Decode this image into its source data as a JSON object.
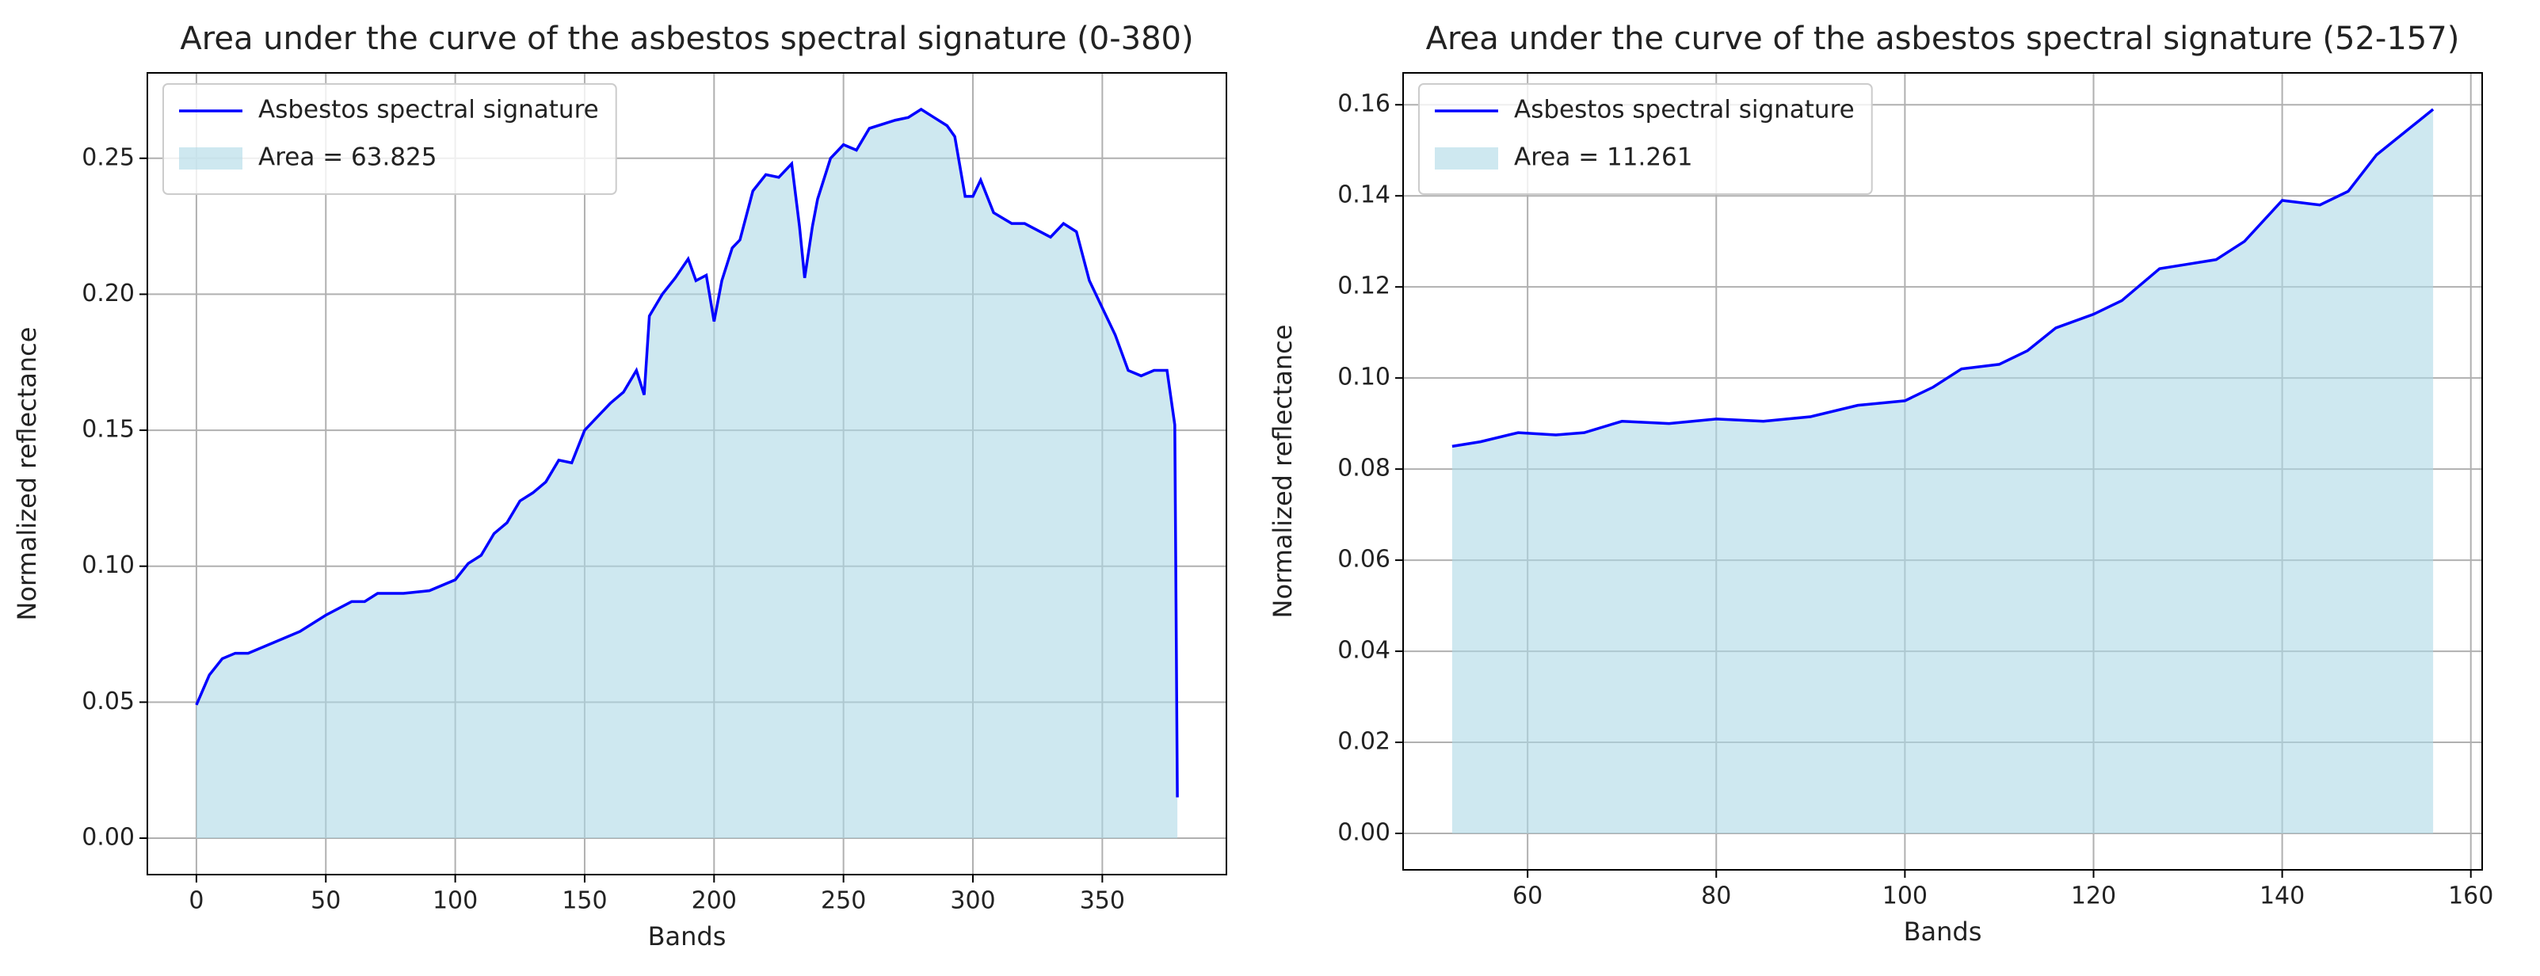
{
  "chart_data": [
    {
      "type": "line",
      "title": "Area under the curve of the asbestos spectral signature (0-380)",
      "xlabel": "Bands",
      "ylabel": "Normalized reflectance",
      "xlim": [
        -18.95,
        397.95
      ],
      "ylim": [
        -0.0134,
        0.2814
      ],
      "xticks": [
        0,
        50,
        100,
        150,
        200,
        250,
        300,
        350
      ],
      "yticks": [
        {
          "value": 0,
          "label": "0.00"
        },
        {
          "value": 0.05,
          "label": "0.05"
        },
        {
          "value": 0.1,
          "label": "0.10"
        },
        {
          "value": 0.15,
          "label": "0.15"
        },
        {
          "value": 0.2,
          "label": "0.20"
        },
        {
          "value": 0.25,
          "label": "0.25"
        }
      ],
      "grid": true,
      "legend": "upper left",
      "series": [
        {
          "name": "Asbestos spectral signature",
          "color": "#0000ff",
          "x": [
            0,
            5,
            10,
            15,
            20,
            30,
            40,
            50,
            60,
            65,
            70,
            80,
            90,
            100,
            105,
            110,
            115,
            120,
            125,
            130,
            135,
            140,
            145,
            150,
            160,
            165,
            170,
            173,
            175,
            180,
            185,
            190,
            193,
            197,
            200,
            203,
            207,
            210,
            215,
            220,
            225,
            230,
            233,
            235,
            238,
            240,
            245,
            250,
            255,
            260,
            270,
            275,
            280,
            285,
            290,
            293,
            297,
            300,
            303,
            308,
            315,
            320,
            330,
            335,
            340,
            345,
            350,
            355,
            360,
            365,
            370,
            375,
            378,
            379
          ],
          "values": [
            0.049,
            0.06,
            0.066,
            0.068,
            0.068,
            0.072,
            0.076,
            0.082,
            0.087,
            0.087,
            0.09,
            0.09,
            0.091,
            0.095,
            0.101,
            0.104,
            0.112,
            0.116,
            0.124,
            0.127,
            0.131,
            0.139,
            0.138,
            0.15,
            0.16,
            0.164,
            0.172,
            0.163,
            0.192,
            0.2,
            0.206,
            0.213,
            0.205,
            0.207,
            0.19,
            0.205,
            0.217,
            0.22,
            0.238,
            0.244,
            0.243,
            0.248,
            0.225,
            0.206,
            0.225,
            0.235,
            0.25,
            0.255,
            0.253,
            0.261,
            0.264,
            0.265,
            0.268,
            0.265,
            0.262,
            0.258,
            0.236,
            0.236,
            0.242,
            0.23,
            0.226,
            0.226,
            0.221,
            0.226,
            0.223,
            0.205,
            0.195,
            0.185,
            0.172,
            0.17,
            0.172,
            0.172,
            0.152,
            0.015
          ]
        }
      ],
      "area": {
        "label": "Area = 63.825",
        "color": "#add8e6"
      }
    },
    {
      "type": "line",
      "title": "Area under the curve of the asbestos spectral signature (52-157)",
      "xlabel": "Bands",
      "ylabel": "Normalized reflectance",
      "xlim": [
        46.8,
        161.2
      ],
      "ylim": [
        -0.008,
        0.167
      ],
      "xticks": [
        60,
        80,
        100,
        120,
        140,
        160
      ],
      "yticks": [
        {
          "value": 0,
          "label": "0.00"
        },
        {
          "value": 0.02,
          "label": "0.02"
        },
        {
          "value": 0.04,
          "label": "0.04"
        },
        {
          "value": 0.06,
          "label": "0.06"
        },
        {
          "value": 0.08,
          "label": "0.08"
        },
        {
          "value": 0.1,
          "label": "0.10"
        },
        {
          "value": 0.12,
          "label": "0.12"
        },
        {
          "value": 0.14,
          "label": "0.14"
        },
        {
          "value": 0.16,
          "label": "0.16"
        }
      ],
      "grid": true,
      "legend": "upper left",
      "series": [
        {
          "name": "Asbestos spectral signature",
          "color": "#0000ff",
          "x": [
            52,
            55,
            59,
            63,
            66,
            70,
            75,
            80,
            85,
            90,
            95,
            100,
            103,
            106,
            110,
            113,
            116,
            120,
            123,
            127,
            130,
            133,
            136,
            140,
            144,
            147,
            150,
            153,
            156
          ],
          "values": [
            0.085,
            0.086,
            0.088,
            0.0875,
            0.088,
            0.0905,
            0.09,
            0.091,
            0.0905,
            0.0915,
            0.094,
            0.095,
            0.098,
            0.102,
            0.103,
            0.106,
            0.111,
            0.114,
            0.117,
            0.124,
            0.125,
            0.126,
            0.13,
            0.139,
            0.138,
            0.141,
            0.149,
            0.154,
            0.159
          ]
        }
      ],
      "area": {
        "label": "Area = 11.261",
        "color": "#add8e6"
      }
    }
  ]
}
